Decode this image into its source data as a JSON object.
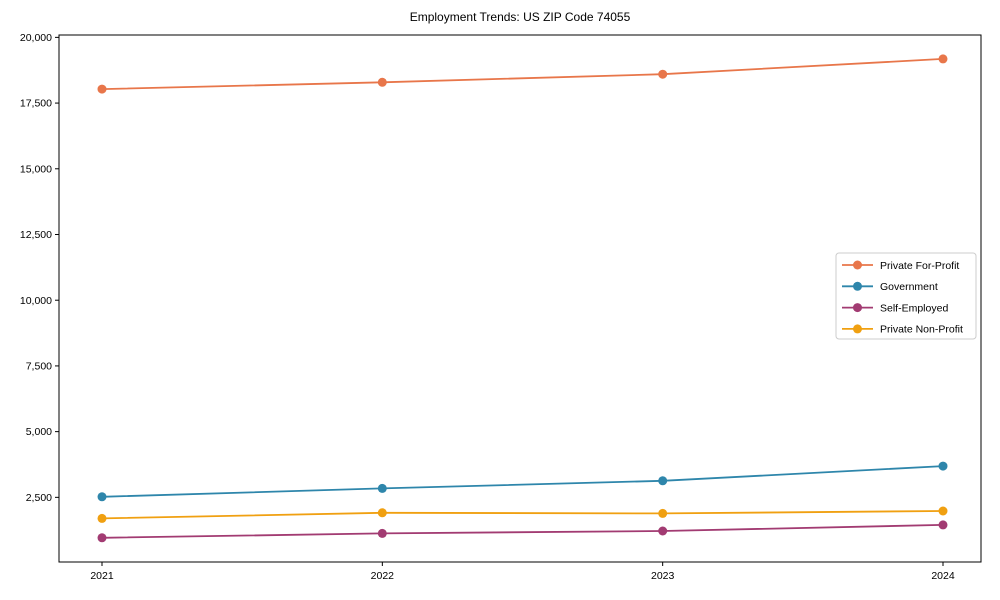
{
  "chart_data": {
    "type": "line",
    "title": "Employment Trends: US ZIP Code 74055",
    "categories": [
      "2021",
      "2022",
      "2023",
      "2024"
    ],
    "series": [
      {
        "name": "Private For-Profit",
        "color": "#E8764A",
        "values": [
          18030,
          18290,
          18600,
          19180
        ]
      },
      {
        "name": "Government",
        "color": "#2E86AB",
        "values": [
          2520,
          2840,
          3130,
          3690
        ]
      },
      {
        "name": "Self-Employed",
        "color": "#A23B72",
        "values": [
          960,
          1130,
          1220,
          1450
        ]
      },
      {
        "name": "Private Non-Profit",
        "color": "#F0A011",
        "values": [
          1700,
          1910,
          1890,
          1980
        ]
      }
    ],
    "xlabel": "",
    "ylabel": "",
    "ylim": [
      0,
      20100
    ],
    "yticks": [
      2500,
      5000,
      7500,
      10000,
      12500,
      15000,
      17500,
      20000
    ],
    "ytick_labels": [
      "2,500",
      "5,000",
      "7,500",
      "10,000",
      "12,500",
      "15,000",
      "17,500",
      "20,000"
    ],
    "grid": false,
    "legend_position": "right",
    "frame_color": "#000000",
    "legend_border_color": "#cccccc",
    "legend_background": "#ffffff"
  }
}
